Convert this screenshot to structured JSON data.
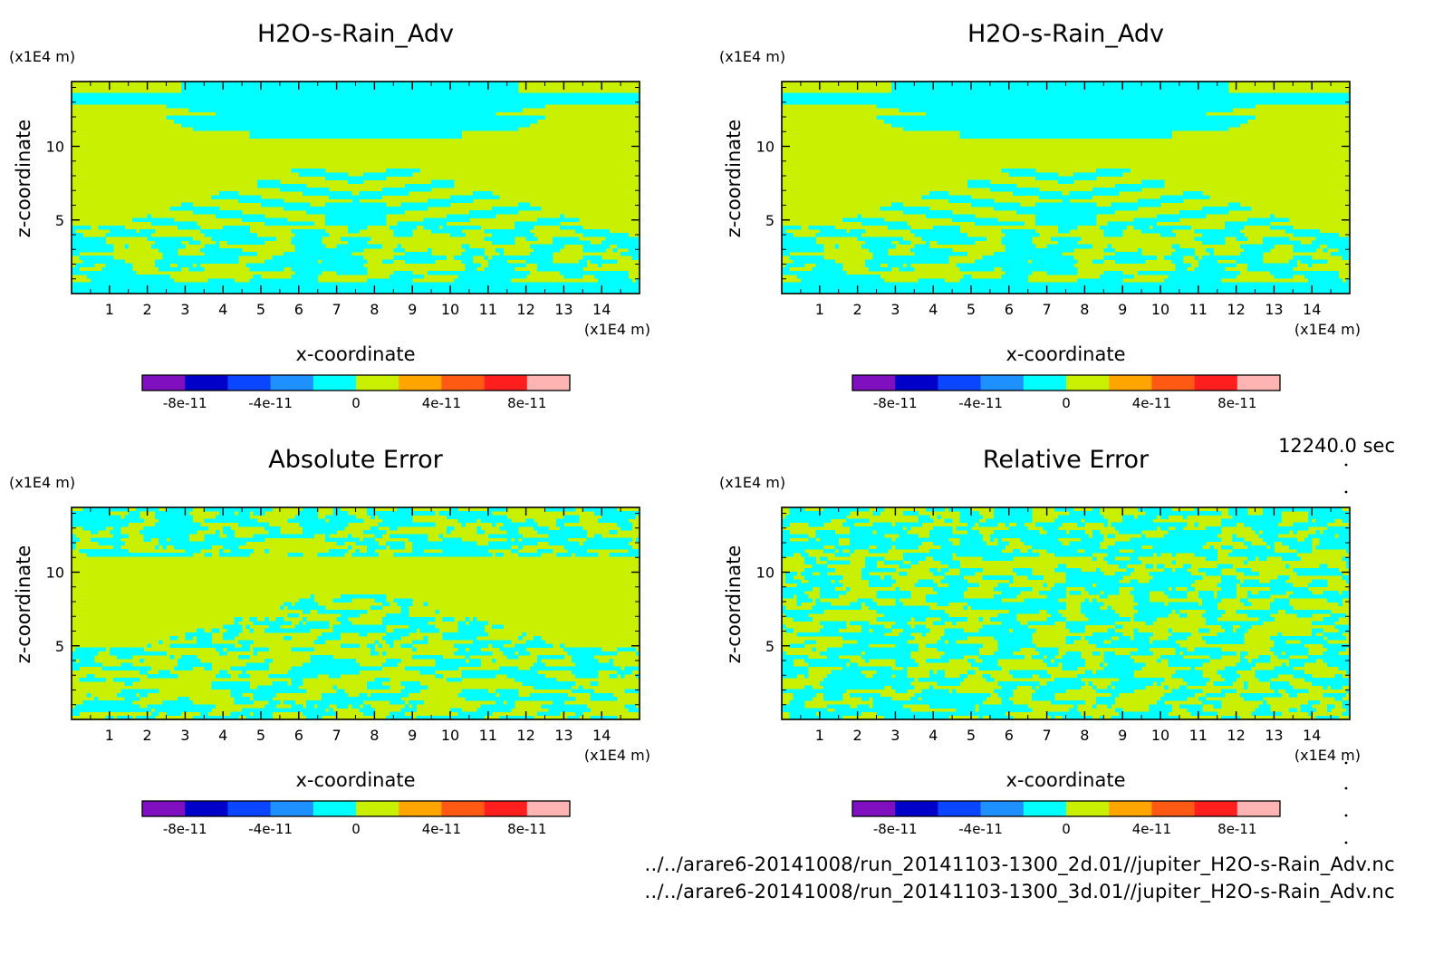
{
  "chart_data": [
    {
      "type": "heatmap",
      "title": "H2O-s-Rain_Adv",
      "xlabel": "x-coordinate",
      "ylabel": "z-coordinate",
      "x_unit": "(x1E4 m)",
      "y_unit": "(x1E4 m)",
      "xlim": [
        0,
        15
      ],
      "ylim": [
        0,
        15
      ],
      "x_ticks": [
        "1",
        "2",
        "3",
        "4",
        "5",
        "6",
        "7",
        "8",
        "9",
        "10",
        "11",
        "12",
        "13",
        "14"
      ],
      "y_ticks": [
        "5",
        "10"
      ],
      "pattern": "field",
      "dominant_levels": [
        0,
        2e-11
      ]
    },
    {
      "type": "heatmap",
      "title": "H2O-s-Rain_Adv",
      "xlabel": "x-coordinate",
      "ylabel": "z-coordinate",
      "x_unit": "(x1E4 m)",
      "y_unit": "(x1E4 m)",
      "xlim": [
        0,
        15
      ],
      "ylim": [
        0,
        15
      ],
      "x_ticks": [
        "1",
        "2",
        "3",
        "4",
        "5",
        "6",
        "7",
        "8",
        "9",
        "10",
        "11",
        "12",
        "13",
        "14"
      ],
      "y_ticks": [
        "5",
        "10"
      ],
      "pattern": "field",
      "dominant_levels": [
        0,
        2e-11
      ]
    },
    {
      "type": "heatmap",
      "title": "Absolute Error",
      "xlabel": "x-coordinate",
      "ylabel": "z-coordinate",
      "x_unit": "(x1E4 m)",
      "y_unit": "(x1E4 m)",
      "xlim": [
        0,
        15
      ],
      "ylim": [
        0,
        15
      ],
      "x_ticks": [
        "1",
        "2",
        "3",
        "4",
        "5",
        "6",
        "7",
        "8",
        "9",
        "10",
        "11",
        "12",
        "13",
        "14"
      ],
      "y_ticks": [
        "5",
        "10"
      ],
      "pattern": "abs_error",
      "dominant_levels": [
        0,
        2e-11
      ]
    },
    {
      "type": "heatmap",
      "title": "Relative Error",
      "xlabel": "x-coordinate",
      "ylabel": "z-coordinate",
      "x_unit": "(x1E4 m)",
      "y_unit": "(x1E4 m)",
      "xlim": [
        0,
        15
      ],
      "ylim": [
        0,
        15
      ],
      "x_ticks": [
        "1",
        "2",
        "3",
        "4",
        "5",
        "6",
        "7",
        "8",
        "9",
        "10",
        "11",
        "12",
        "13",
        "14"
      ],
      "y_ticks": [
        "5",
        "10"
      ],
      "pattern": "rel_error",
      "dominant_levels": [
        0,
        2e-11
      ]
    }
  ],
  "colorbar": {
    "levels": [
      -1e-10,
      -8e-11,
      -6e-11,
      -4e-11,
      -2e-11,
      0,
      2e-11,
      4e-11,
      6e-11,
      8e-11,
      1e-10
    ],
    "colors": [
      "#7f0fbf",
      "#0000c8",
      "#0a46ff",
      "#1e90ff",
      "#00ffff",
      "#c8f000",
      "#ffa500",
      "#ff5a14",
      "#ff1e1e",
      "#ffb4b4"
    ],
    "tick_labels": [
      "-8e-11",
      "-4e-11",
      "0",
      "4e-11",
      "8e-11"
    ]
  },
  "timestamp": "12240.0 sec",
  "files": [
    "../../arare6-20141008/run_20141103-1300_2d.01//jupiter_H2O-s-Rain_Adv.nc",
    "../../arare6-20141008/run_20141103-1300_3d.01//jupiter_H2O-s-Rain_Adv.nc"
  ]
}
